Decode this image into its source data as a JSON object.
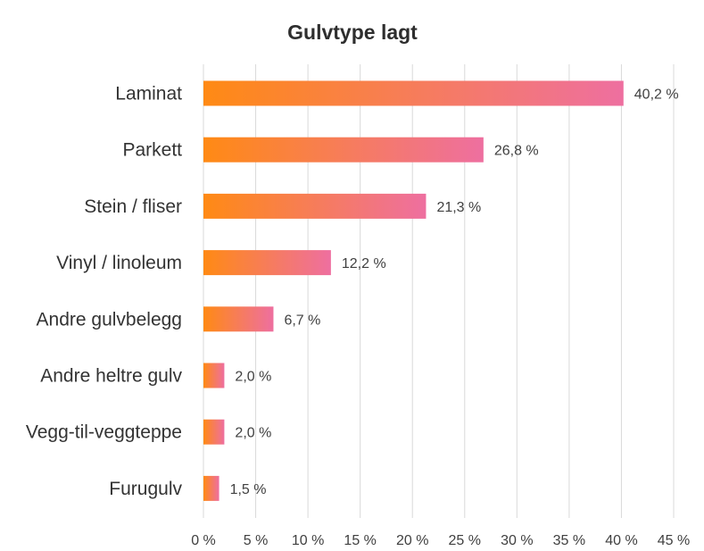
{
  "chart_data": {
    "type": "bar",
    "orientation": "horizontal",
    "title": "Gulvtype lagt",
    "categories": [
      "Laminat",
      "Parkett",
      "Stein / fliser",
      "Vinyl / linoleum",
      "Andre gulvbelegg",
      "Andre heltre gulv",
      "Vegg-til-veggteppe",
      "Furugulv"
    ],
    "values": [
      40.2,
      26.8,
      21.3,
      12.2,
      6.7,
      2.0,
      2.0,
      1.5
    ],
    "value_labels": [
      "40,2 %",
      "26,8 %",
      "21,3 %",
      "12,2 %",
      "6,7 %",
      "2,0 %",
      "2,0 %",
      "1,5 %"
    ],
    "xlim": [
      0,
      45
    ],
    "xticks": [
      0,
      5,
      10,
      15,
      20,
      25,
      30,
      35,
      40,
      45
    ],
    "xtick_labels": [
      "0 %",
      "5 %",
      "10 %",
      "15 %",
      "20 %",
      "25 %",
      "30 %",
      "35 %",
      "40 %",
      "45 %"
    ],
    "xlabel": "",
    "ylabel": "",
    "grid": "vertical",
    "legend": "none",
    "colors": {
      "bar_start": "#ff8a14",
      "bar_end": "#ee6fa0",
      "grid": "#d9d9d9",
      "text": "#333333"
    }
  }
}
